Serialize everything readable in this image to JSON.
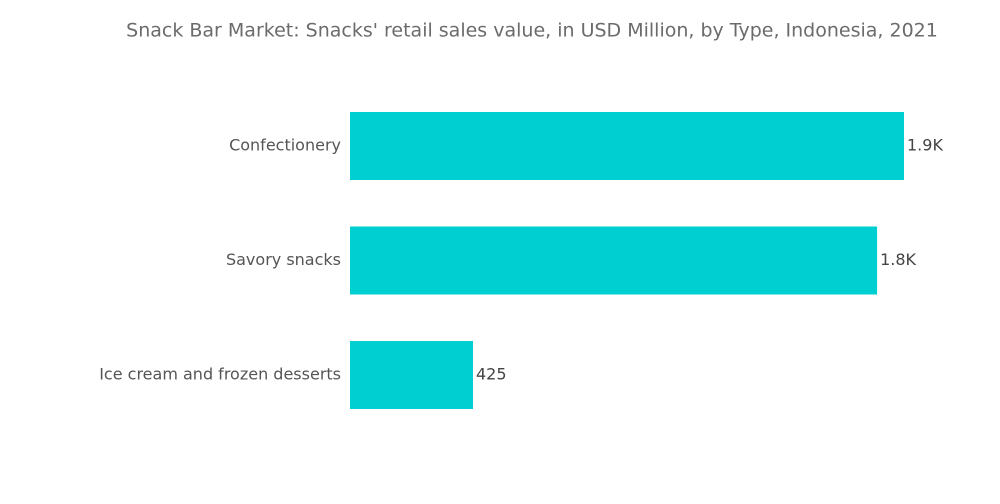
{
  "chart_data": {
    "type": "hbar",
    "title": "Snack Bar Market: Snacks' retail sales value, in USD Million, by Type, Indonesia, 2021",
    "categories": [
      "Confectionery",
      "Savory snacks",
      "Ice cream and frozen desserts"
    ],
    "values": [
      1914,
      1821,
      425
    ],
    "value_labels": [
      "1.9K",
      "1.8K",
      "425"
    ],
    "color": "#00cfd1"
  }
}
